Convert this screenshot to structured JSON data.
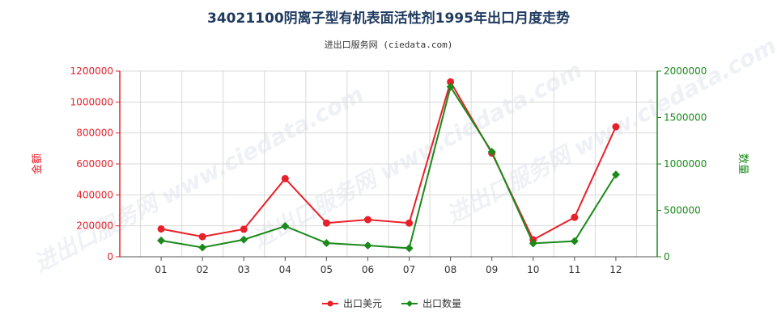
{
  "chart_data": {
    "type": "line",
    "title": "34021100阴离子型有机表面活性剂1995年出口月度走势",
    "subtitle": "进出口服务网 (ciedata.com)",
    "watermark": "进出口服务网 www.ciedata.com",
    "categories": [
      "01",
      "02",
      "03",
      "04",
      "05",
      "06",
      "07",
      "08",
      "09",
      "10",
      "11",
      "12"
    ],
    "y_left": {
      "label": "金额",
      "ylim": [
        0,
        1200000
      ],
      "ticks": [
        "0",
        "200000",
        "400000",
        "600000",
        "800000",
        "1000000",
        "1200000"
      ],
      "color": "#e8202a"
    },
    "y_right": {
      "label": "数量",
      "ylim": [
        0,
        2000000
      ],
      "ticks": [
        "0",
        "500000",
        "1000000",
        "1500000",
        "2000000"
      ],
      "color": "#1a8a1a"
    },
    "grid": true,
    "legend_position": "bottom-center",
    "series": [
      {
        "name": "出口美元",
        "axis": "left",
        "color": "#e8202a",
        "marker": "circle",
        "values": [
          180000,
          130000,
          178000,
          505000,
          218000,
          240000,
          218000,
          1130000,
          670000,
          110000,
          255000,
          840000
        ]
      },
      {
        "name": "出口数量",
        "axis": "right",
        "color": "#1a8a1a",
        "marker": "diamond",
        "values": [
          175000,
          100000,
          185000,
          330000,
          148000,
          122000,
          92000,
          1830000,
          1130000,
          145000,
          168000,
          885000
        ]
      }
    ]
  }
}
